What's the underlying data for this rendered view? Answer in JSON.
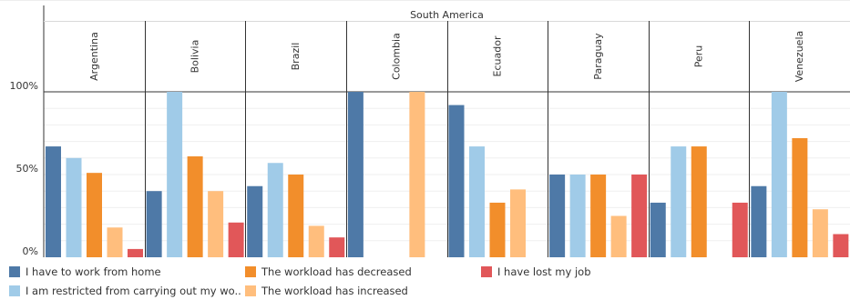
{
  "chart_data": {
    "type": "bar",
    "group_title": "South America",
    "categories": [
      "Argentina",
      "Bolivia",
      "Brazil",
      "Colombia",
      "Ecuador",
      "Paraguay",
      "Peru",
      "Venezuela"
    ],
    "y_ticks": [
      {
        "value": 0,
        "label": "0%"
      },
      {
        "value": 50,
        "label": "50%"
      },
      {
        "value": 100,
        "label": "100%"
      }
    ],
    "ylim": [
      0,
      100
    ],
    "legend_position": "bottom-left",
    "series": [
      {
        "name": "I have to work from home",
        "color": "#4e79a7",
        "values": [
          67,
          40,
          43,
          100,
          92,
          50,
          33,
          43
        ]
      },
      {
        "name": "I am restricted from carrying out my wo..",
        "color": "#a0cbe8",
        "values": [
          60,
          100,
          57,
          0,
          67,
          50,
          67,
          100
        ]
      },
      {
        "name": "The workload has decreased",
        "color": "#f28e2b",
        "values": [
          51,
          61,
          50,
          0,
          33,
          50,
          67,
          72
        ]
      },
      {
        "name": "The workload has increased",
        "color": "#ffbe7d",
        "values": [
          18,
          40,
          19,
          100,
          41,
          25,
          0,
          29
        ]
      },
      {
        "name": "I have lost my job",
        "color": "#e15759",
        "values": [
          5,
          21,
          12,
          0,
          0,
          50,
          33,
          14
        ]
      }
    ]
  }
}
